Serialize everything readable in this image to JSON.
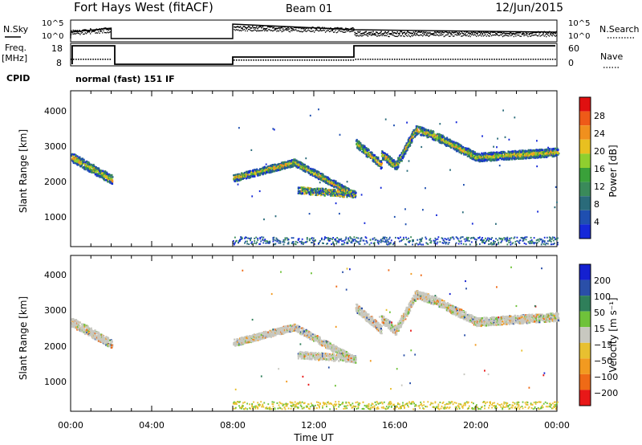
{
  "header": {
    "title": "Fort Hays West (fitACF)",
    "beam": "Beam 01",
    "date": "12/Jun/2015"
  },
  "side_labels": {
    "nsky": "N.Sky",
    "nsearch": "N.Search",
    "freq": "Freq.",
    "freq_unit": "[MHz]",
    "nave": "Nave",
    "cpid": "CPID",
    "cpid_value": "normal (fast) 151 IF"
  },
  "noise_panel": {
    "left_ticks": [
      "10^5",
      "10^0"
    ],
    "right_ticks": [
      "10^5",
      "10^0"
    ]
  },
  "freq_panel": {
    "left_ticks": [
      "18",
      "8"
    ],
    "right_ticks": [
      "60",
      "0"
    ]
  },
  "colors": {
    "power": [
      "#1528d8",
      "#1f4fb0",
      "#2a6b7a",
      "#3a8a5a",
      "#3aa13a",
      "#8fcf2f",
      "#e8c020",
      "#f0901e",
      "#ee5a18",
      "#e01010"
    ],
    "velocity": [
      "#1420d0",
      "#2a4fa8",
      "#2f7f5a",
      "#6fc23a",
      "#c8c8c0",
      "#e8c030",
      "#f29a20",
      "#ef6a16",
      "#e81818"
    ]
  },
  "chart_data": [
    {
      "type": "heatmap",
      "ylabel": "Slant Range [km]",
      "xlabel": "",
      "yticks": [
        "4000",
        "3000",
        "2000",
        "1000"
      ],
      "xticks": [
        "00:00",
        "04:00",
        "08:00",
        "12:00",
        "16:00",
        "20:00",
        "00:00"
      ],
      "colorbar": {
        "label": "Power [dB]",
        "ticks": [
          "28",
          "24",
          "20",
          "16",
          "12",
          "8",
          "4"
        ]
      },
      "approx_range_km": [
        [
          0,
          2600
        ],
        [
          2,
          1950
        ],
        [
          8,
          2000
        ],
        [
          11,
          2450
        ],
        [
          14,
          1500
        ],
        [
          14,
          3300
        ],
        [
          16,
          2350
        ],
        [
          17,
          3400
        ],
        [
          18,
          3200
        ],
        [
          20,
          2600
        ],
        [
          24,
          2750
        ]
      ]
    },
    {
      "type": "heatmap",
      "ylabel": "Slant Range [km]",
      "xlabel": "Time UT",
      "yticks": [
        "4000",
        "3000",
        "2000",
        "1000"
      ],
      "xticks": [
        "00:00",
        "04:00",
        "08:00",
        "12:00",
        "16:00",
        "20:00",
        "00:00"
      ],
      "colorbar": {
        "label": "Velocity [m s⁻¹]",
        "ticks": [
          "200",
          "100",
          "50",
          "15",
          "−15",
          "−50",
          "−100",
          "−200"
        ]
      },
      "approx_range_km": [
        [
          0,
          2600
        ],
        [
          2,
          1950
        ],
        [
          8,
          2000
        ],
        [
          11,
          2450
        ],
        [
          14,
          1500
        ],
        [
          14,
          3300
        ],
        [
          16,
          2350
        ],
        [
          17,
          3400
        ],
        [
          18,
          3200
        ],
        [
          20,
          2600
        ],
        [
          24,
          2750
        ]
      ]
    }
  ]
}
